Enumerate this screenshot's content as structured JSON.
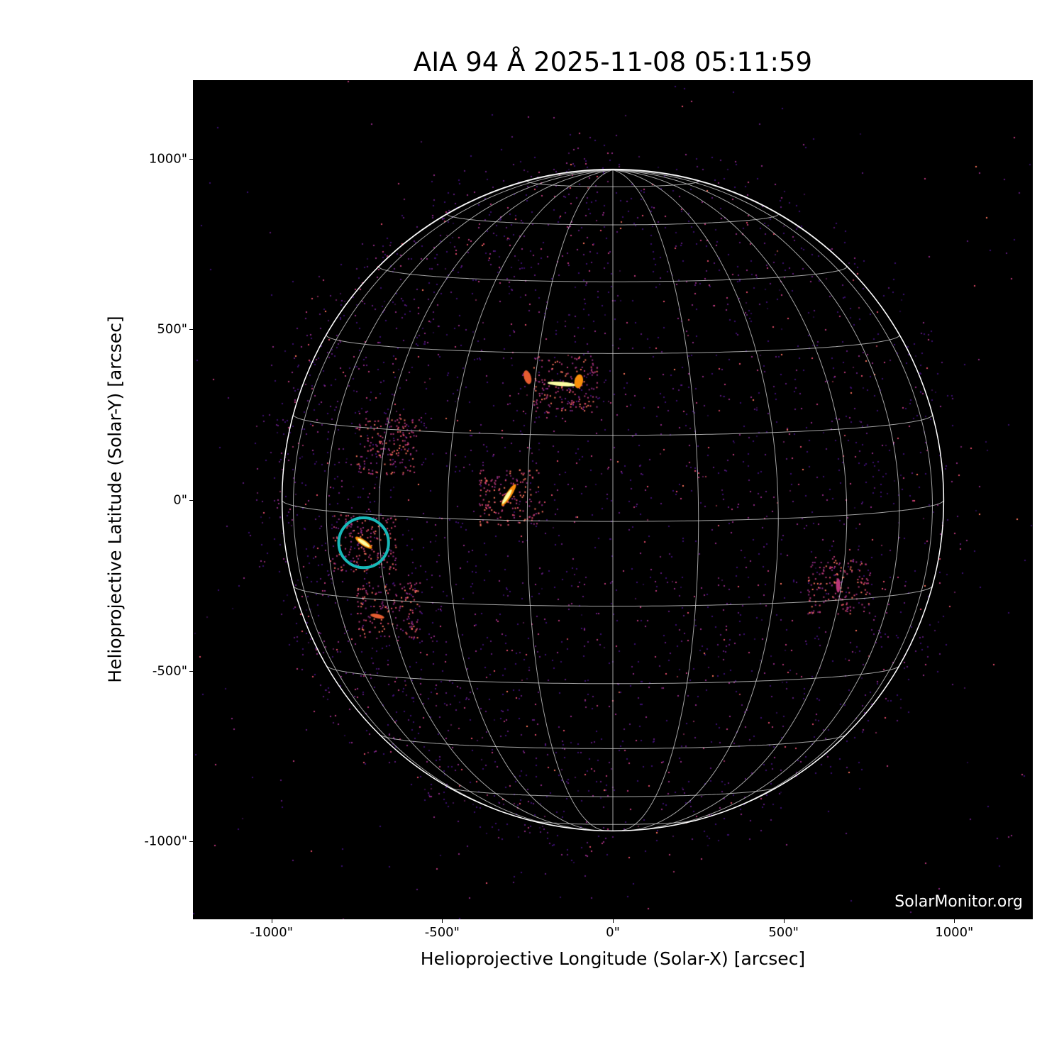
{
  "chart_data": {
    "type": "image",
    "title": "AIA 94 Å 2025-11-08 05:11:59",
    "xlabel": "Helioprojective Longitude (Solar-X) [arcsec]",
    "ylabel": "Helioprojective Latitude (Solar-Y) [arcsec]",
    "xlim": [
      -1230,
      1230
    ],
    "ylim": [
      -1230,
      1230
    ],
    "xticks": [
      "-1000\"",
      "-500\"",
      "0\"",
      "500\"",
      "1000\""
    ],
    "yticks": [
      "1000\"",
      "500\"",
      "0\"",
      "-500\"",
      "-1000\""
    ],
    "xtick_values": [
      -1000,
      -500,
      0,
      500,
      1000
    ],
    "ytick_values": [
      1000,
      500,
      0,
      -500,
      -1000
    ],
    "solar_radius_arcsec": 969,
    "b0_deg": 3.7,
    "grid_spacing_deg": 15,
    "colormap": "inferno-like (black-purple-orange-yellow)",
    "annotations": [
      {
        "type": "circle",
        "x": -730,
        "y": -125,
        "radius_arcsec": 73,
        "color": "#17b8b8"
      }
    ],
    "watermark": "SolarMonitor.org"
  }
}
